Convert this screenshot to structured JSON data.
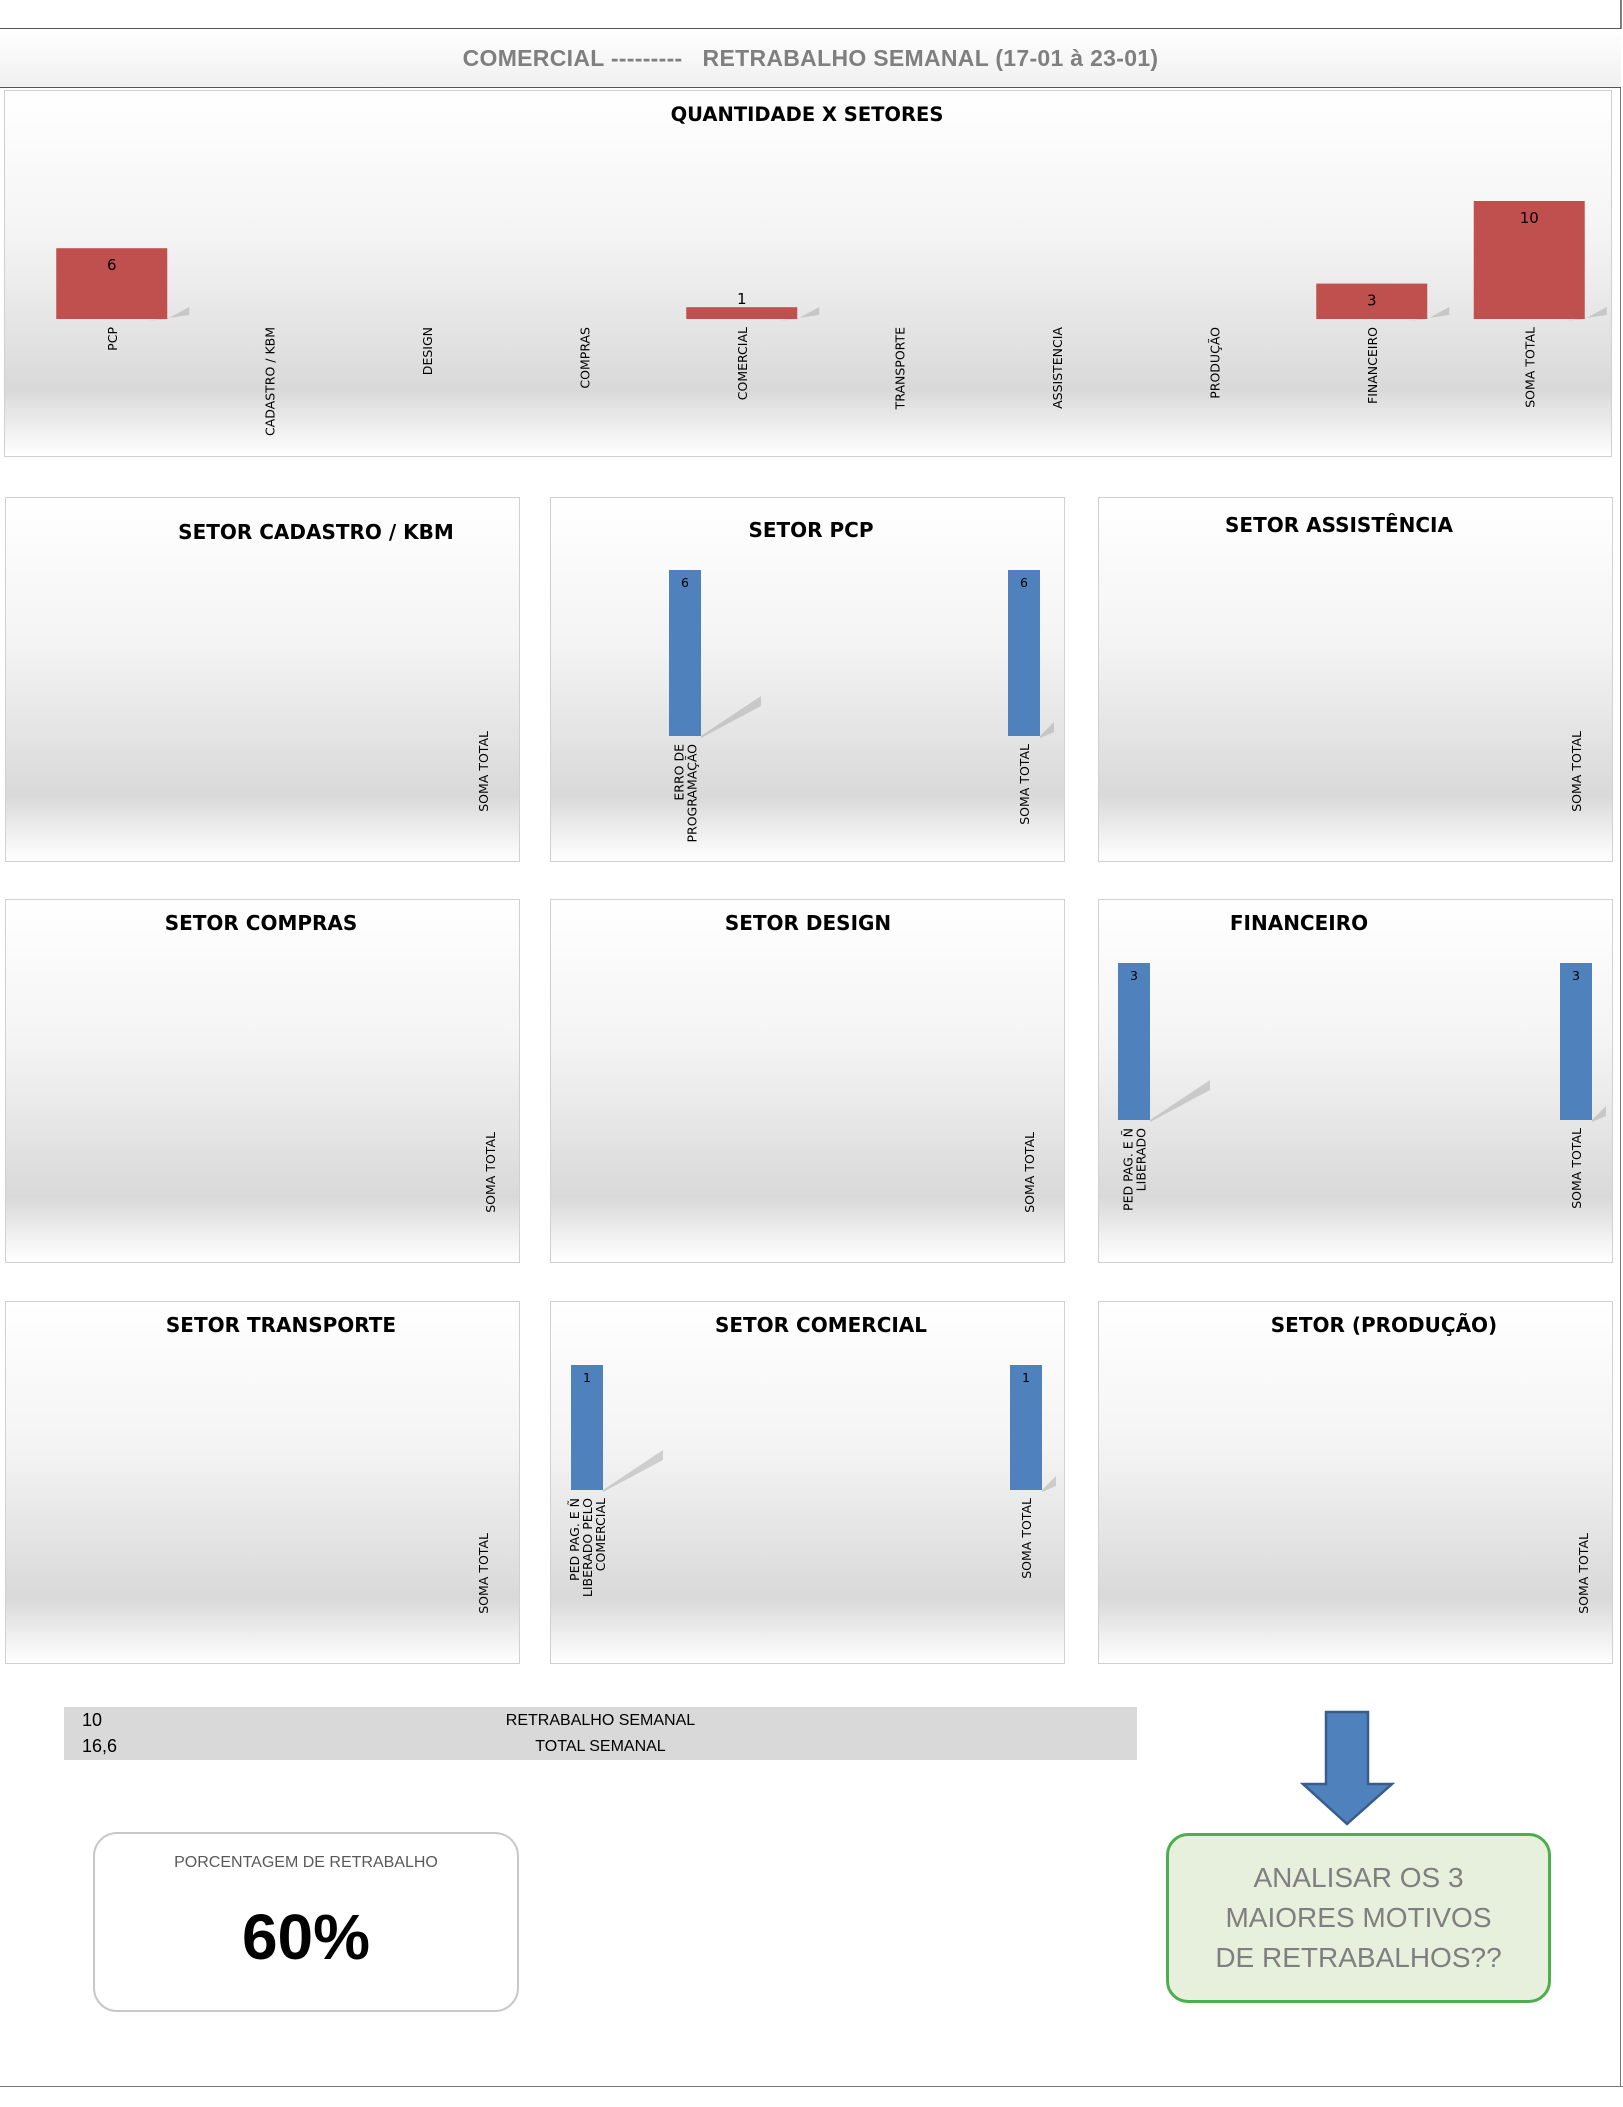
{
  "header": {
    "title": "COMERCIAL ---------   RETRABALHO SEMANAL (17-01 à 23-01)"
  },
  "colors": {
    "main_bar": "#c0504d",
    "sector_bar": "#4f81bd",
    "note_border": "#4cae4c",
    "note_bg": "#e7f0dc",
    "arrow": "#4f81bd"
  },
  "chart_data": [
    {
      "type": "bar",
      "title": "QUANTIDADE X SETORES",
      "categories": [
        "PCP",
        "CADASTRO / KBM",
        "DESIGN",
        "COMPRAS",
        "COMERCIAL",
        "TRANSPORTE",
        "ASSISTENCIA",
        "PRODUÇÃO",
        "FINANCEIRO",
        "SOMA TOTAL"
      ],
      "values": [
        6,
        null,
        null,
        null,
        1,
        null,
        null,
        null,
        3,
        10
      ],
      "data_labels": [
        "6",
        "",
        "",
        "",
        "1",
        "",
        "",
        "",
        "3",
        "10"
      ],
      "ylim": [
        0,
        10
      ]
    },
    {
      "type": "bar",
      "title": "SETOR CADASTRO  / KBM",
      "categories": [
        "SOMA TOTAL"
      ],
      "values": [
        null
      ],
      "data_labels": [
        ""
      ]
    },
    {
      "type": "bar",
      "title": "SETOR PCP",
      "categories": [
        "ERRO DE PROGRAMAÇÃO",
        "SOMA TOTAL"
      ],
      "values": [
        6,
        6
      ],
      "data_labels": [
        "6",
        "6"
      ]
    },
    {
      "type": "bar",
      "title": "SETOR ASSISTÊNCIA",
      "categories": [
        "SOMA TOTAL"
      ],
      "values": [
        null
      ],
      "data_labels": [
        ""
      ]
    },
    {
      "type": "bar",
      "title": "SETOR COMPRAS",
      "categories": [
        "SOMA TOTAL"
      ],
      "values": [
        null
      ],
      "data_labels": [
        ""
      ]
    },
    {
      "type": "bar",
      "title": "SETOR DESIGN",
      "categories": [
        "SOMA TOTAL"
      ],
      "values": [
        null
      ],
      "data_labels": [
        ""
      ]
    },
    {
      "type": "bar",
      "title": "FINANCEIRO",
      "categories": [
        "PED PAG. E Ñ LIBERADO",
        "SOMA TOTAL"
      ],
      "values": [
        3,
        3
      ],
      "data_labels": [
        "3",
        "3"
      ]
    },
    {
      "type": "bar",
      "title": "SETOR TRANSPORTE",
      "categories": [
        "SOMA TOTAL"
      ],
      "values": [
        null
      ],
      "data_labels": [
        ""
      ]
    },
    {
      "type": "bar",
      "title": "SETOR COMERCIAL",
      "categories": [
        "PED PAG. E Ñ LIBERADO PELO COMERCIAL",
        "SOMA TOTAL"
      ],
      "values": [
        1,
        1
      ],
      "data_labels": [
        "1",
        "1"
      ]
    },
    {
      "type": "bar",
      "title": "SETOR (PRODUÇÃO)",
      "categories": [
        "SOMA TOTAL"
      ],
      "values": [
        null
      ],
      "data_labels": [
        ""
      ]
    }
  ],
  "summary": {
    "rows": [
      {
        "value": "10",
        "label": "RETRABALHO SEMANAL"
      },
      {
        "value": "16,6",
        "label": "TOTAL  SEMANAL"
      }
    ]
  },
  "percentage": {
    "label": "PORCENTAGEM DE RETRABALHO",
    "value": "60%"
  },
  "note": {
    "text": "ANALISAR OS 3 MAIORES MOTIVOS DE RETRABALHOS??",
    "icon": "down-arrow-icon"
  }
}
